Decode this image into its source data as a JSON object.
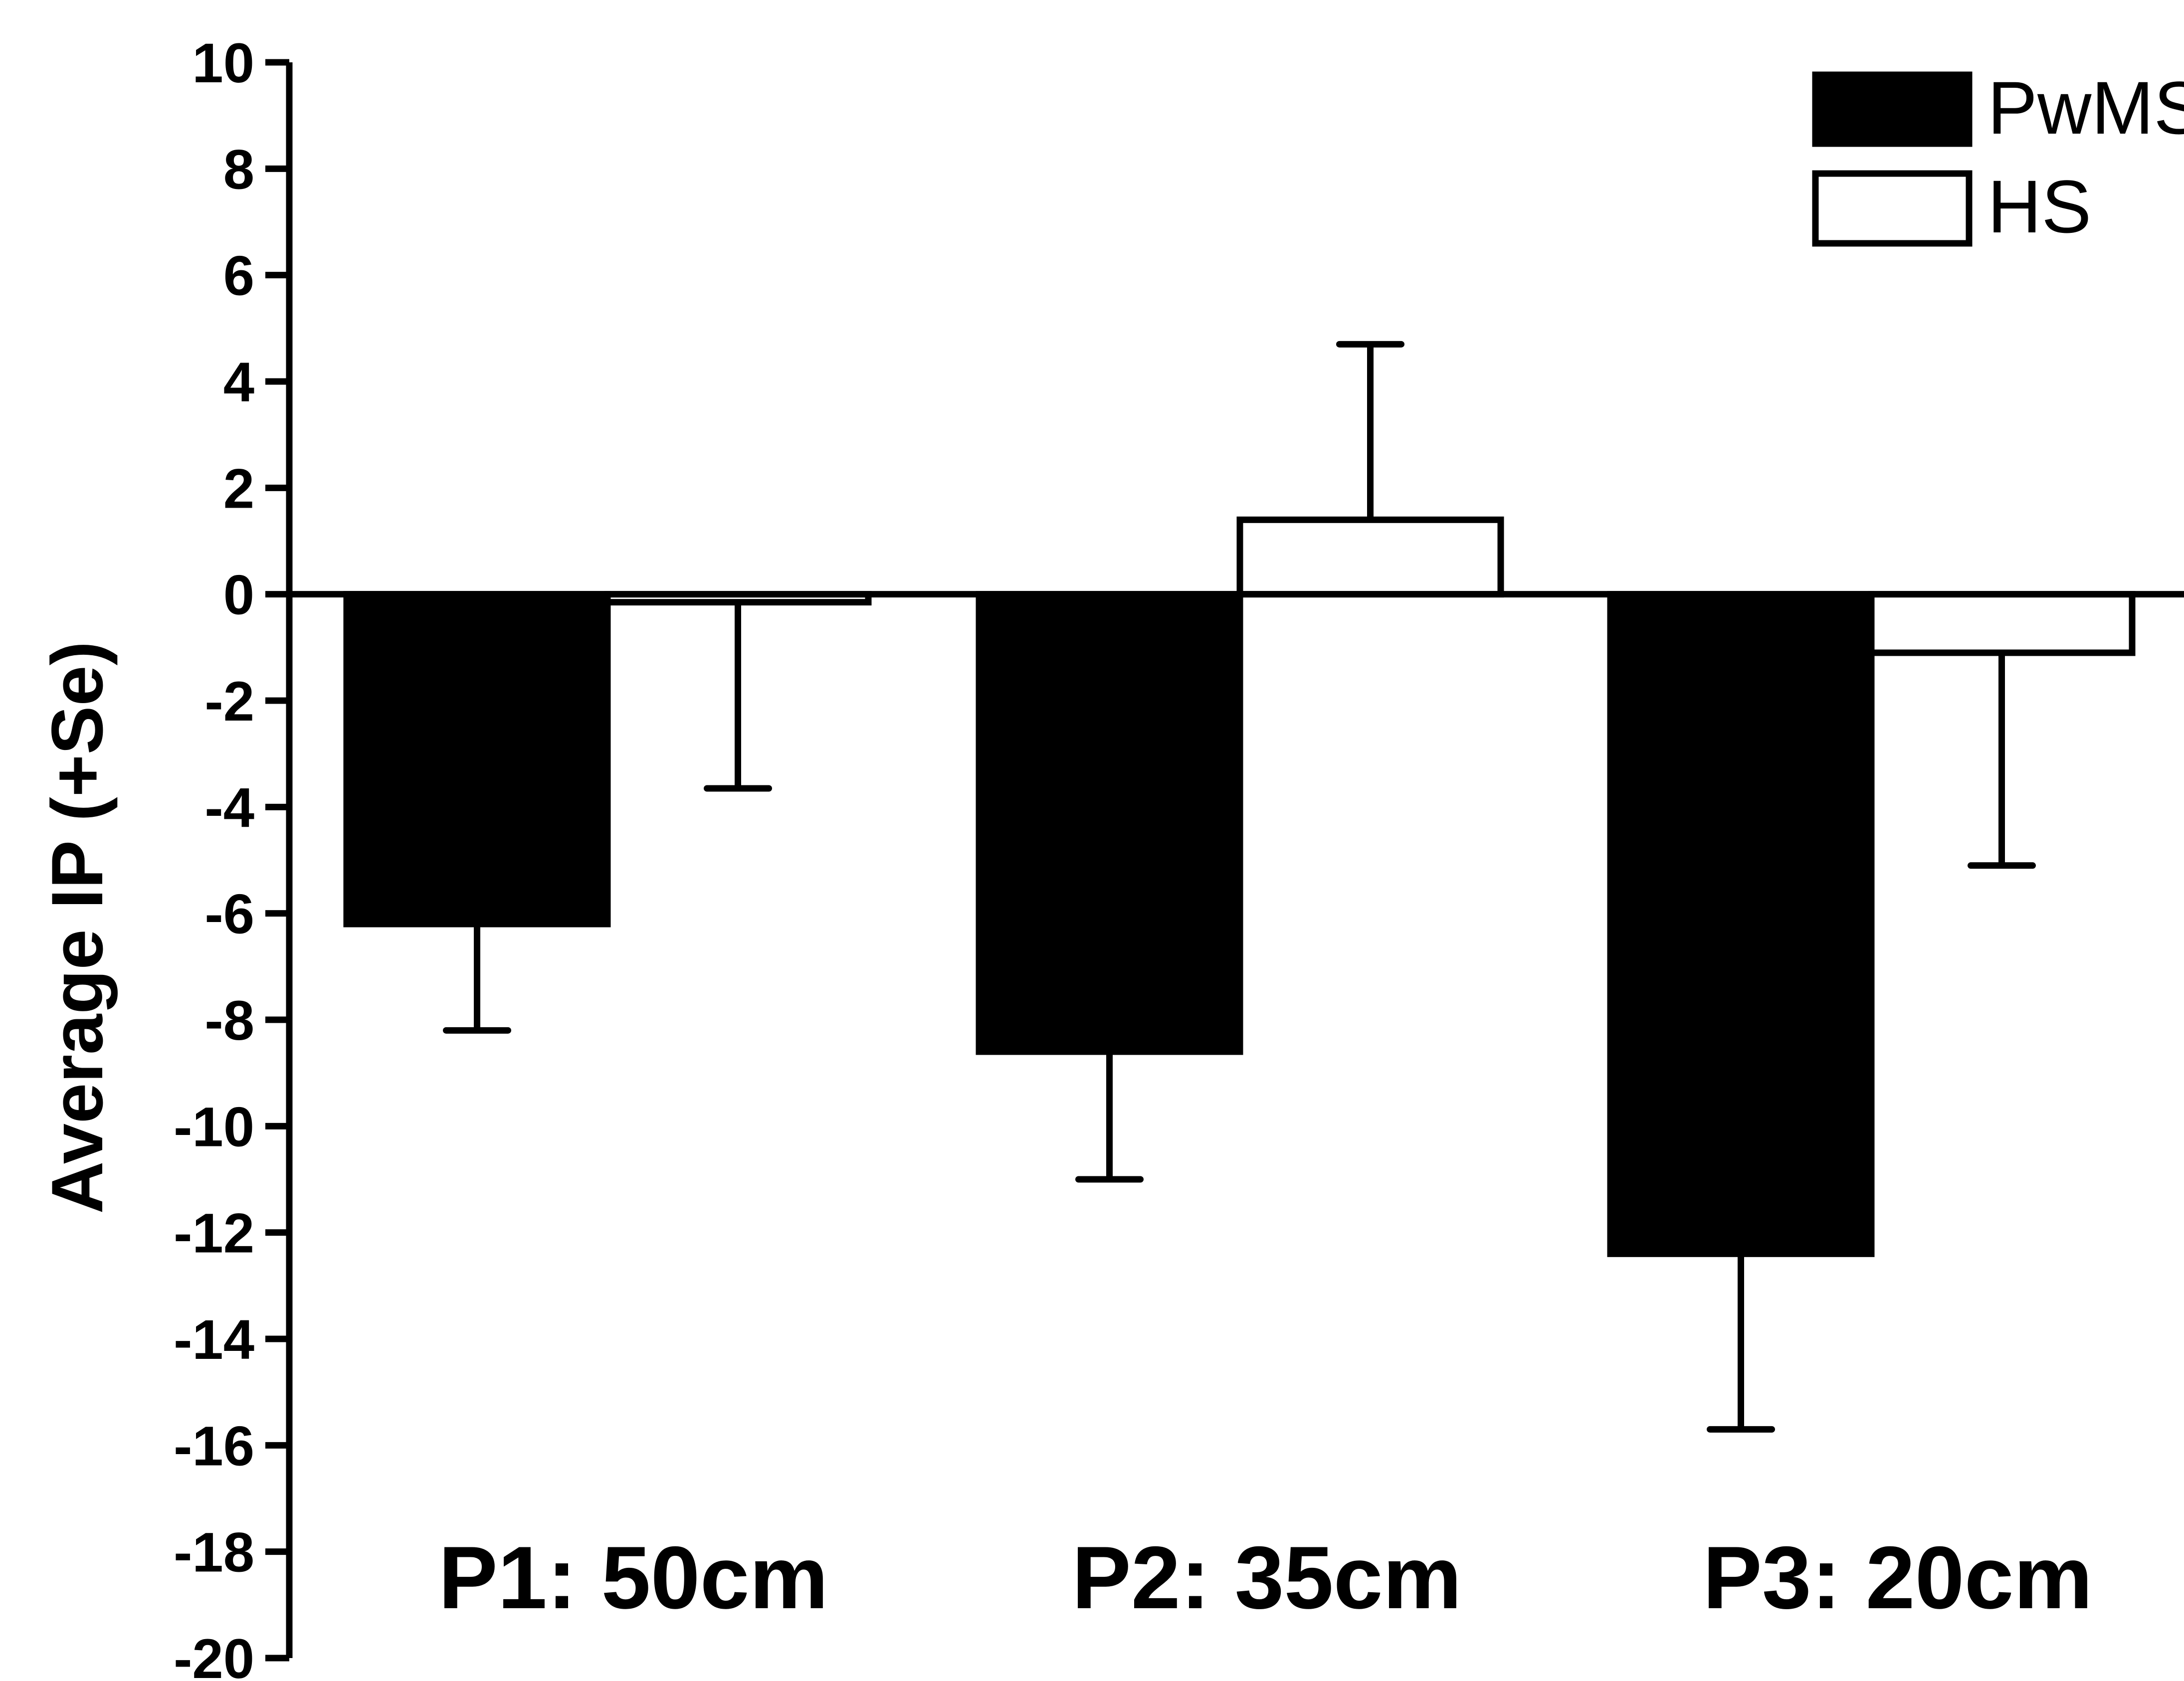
{
  "chart_data": {
    "type": "bar",
    "title": "",
    "xlabel": "",
    "ylabel": "Average IP (+Se)",
    "ylim": [
      -20,
      10
    ],
    "yticks": [
      10,
      8,
      6,
      4,
      2,
      0,
      -2,
      -4,
      -6,
      -8,
      -10,
      -12,
      -14,
      -16,
      -18,
      -20
    ],
    "categories": [
      "P1: 50cm",
      "P2: 35cm",
      "P3: 20cm"
    ],
    "series": [
      {
        "name": "PwMS",
        "fill": "#000000",
        "values": [
          -6.2,
          -8.6,
          -12.4
        ],
        "errors": [
          2.0,
          2.4,
          3.3
        ]
      },
      {
        "name": "HS",
        "fill": "#ffffff",
        "values": [
          -0.15,
          1.4,
          -1.1
        ],
        "errors": [
          3.5,
          3.3,
          4.0
        ]
      }
    ],
    "legend_position": "top-right",
    "grid": false,
    "error_bars": "one-sided, away from zero"
  }
}
